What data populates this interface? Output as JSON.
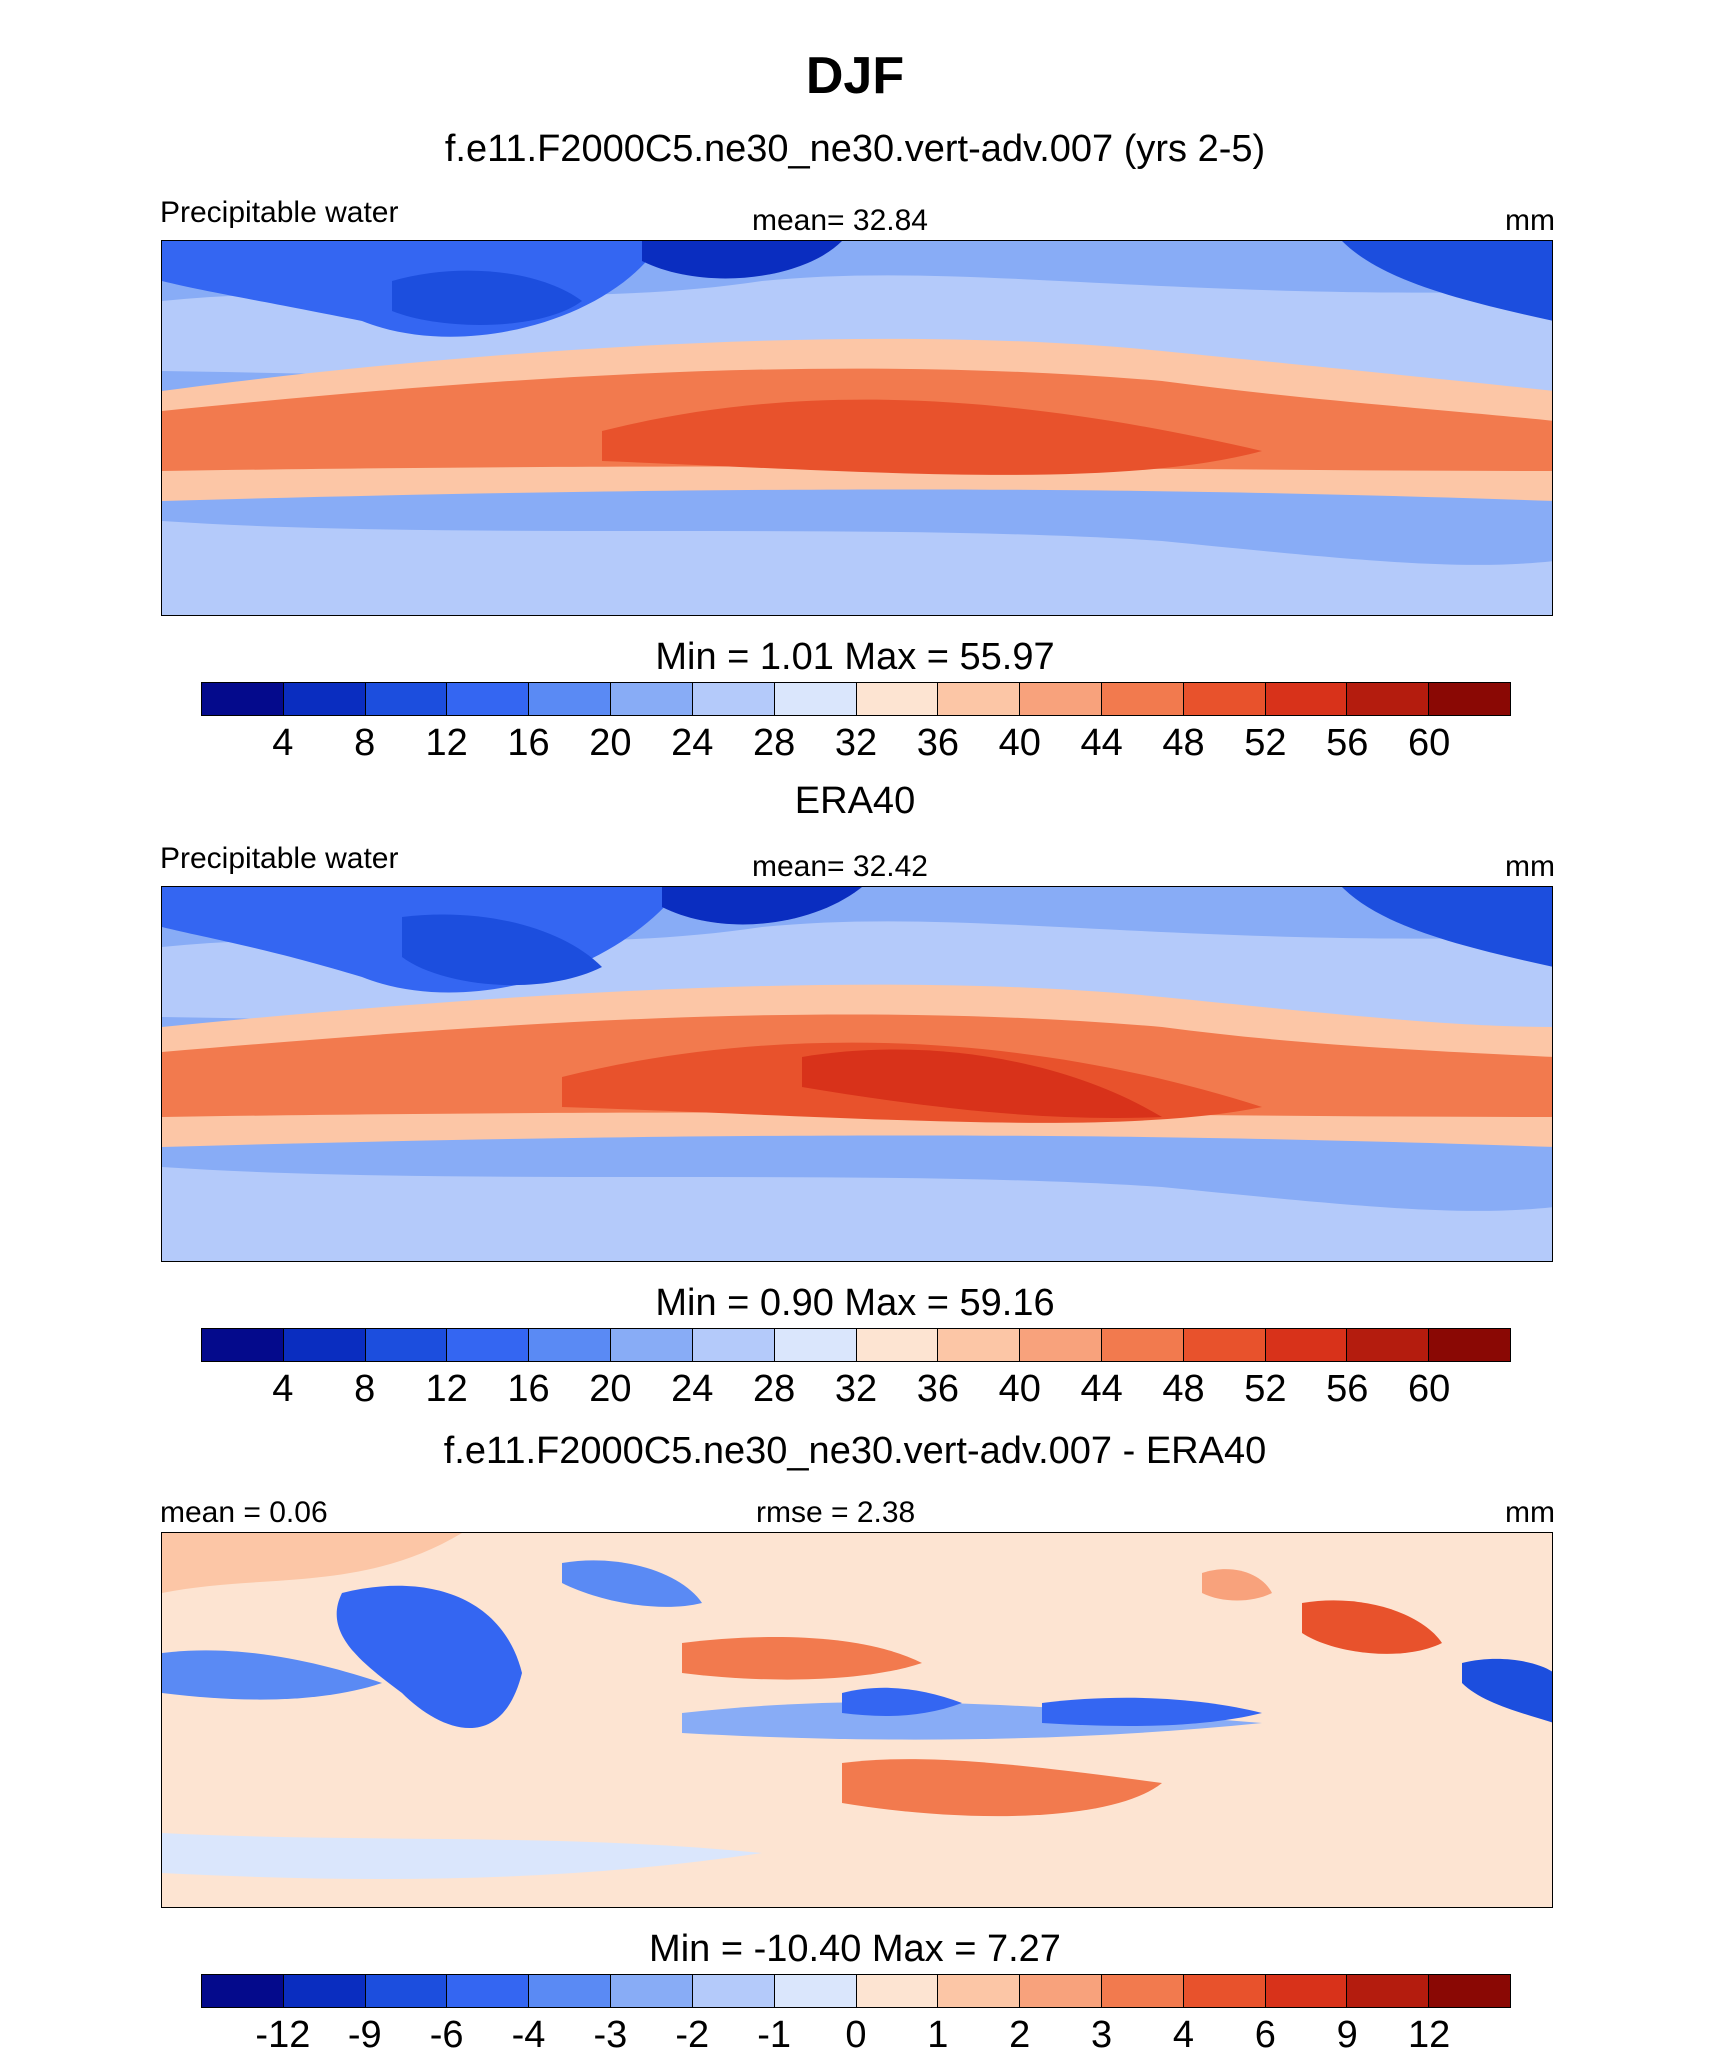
{
  "title": "DJF",
  "colors": [
    "#040a8c",
    "#0a2dc0",
    "#1c4ede",
    "#3466f2",
    "#5a8af4",
    "#88acf6",
    "#b4cafa",
    "#dae6fc",
    "#fde4d2",
    "#fcc6a6",
    "#f8a27c",
    "#f27a4e",
    "#e8522c",
    "#d8321a",
    "#b41c0e",
    "#8a0804"
  ],
  "panels": [
    {
      "subtitle": "f.e11.F2000C5.ne30_ne30.vert-adv.007 (yrs 2-5)",
      "left_label": "Precipitable water",
      "center_label": "mean=  32.84",
      "right_label": "mm",
      "minmax": "Min =    1.01 Max =  55.97",
      "ticks": [
        "4",
        "8",
        "12",
        "16",
        "20",
        "24",
        "28",
        "32",
        "36",
        "40",
        "44",
        "48",
        "52",
        "56",
        "60"
      ],
      "kind": "field"
    },
    {
      "subtitle": "ERA40",
      "left_label": "Precipitable water",
      "center_label": "mean=  32.42",
      "right_label": "mm",
      "minmax": "Min =    0.90 Max =  59.16",
      "ticks": [
        "4",
        "8",
        "12",
        "16",
        "20",
        "24",
        "28",
        "32",
        "36",
        "40",
        "44",
        "48",
        "52",
        "56",
        "60"
      ],
      "kind": "field"
    },
    {
      "subtitle": "f.e11.F2000C5.ne30_ne30.vert-adv.007 - ERA40",
      "left_label": "mean =   0.06",
      "center_label": "rmse =    2.38",
      "right_label": "mm",
      "minmax": "Min = -10.40 Max =    7.27",
      "ticks": [
        "-12",
        "-9",
        "-6",
        "-4",
        "-3",
        "-2",
        "-1",
        "0",
        "1",
        "2",
        "3",
        "4",
        "6",
        "9",
        "12"
      ],
      "kind": "diff"
    }
  ]
}
